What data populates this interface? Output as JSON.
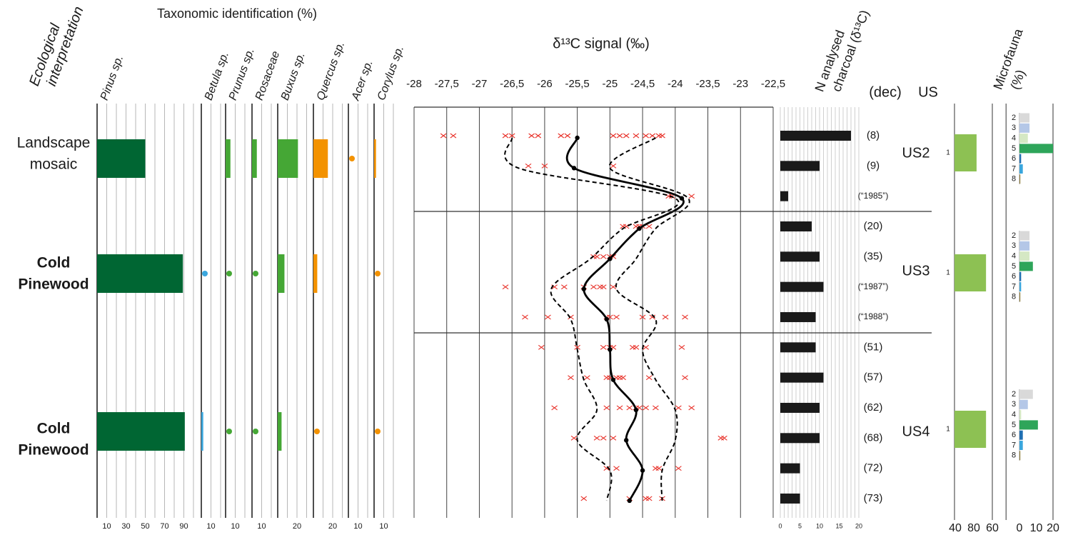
{
  "ecological_interpretation": {
    "title_lines": [
      "Ecological",
      "interpretation"
    ],
    "rows": [
      [
        "Landscape",
        "mosaic"
      ],
      [
        "Cold",
        "Pinewood"
      ],
      [
        "Cold",
        "Pinewood"
      ]
    ],
    "colors": [
      "#45a735",
      "#006633",
      "#006633"
    ]
  },
  "units": {
    "header": "US",
    "labels": [
      "US2",
      "US3",
      "US4"
    ]
  },
  "chart_data": [
    {
      "type": "bar",
      "title": "Taxonomic identification (%)",
      "grid_step": 10,
      "series": [
        {
          "name": "Pinus sp.",
          "color": "#006633",
          "values": [
            50,
            89,
            91
          ],
          "xlim": [
            0,
            100
          ],
          "xticks": [
            10,
            30,
            50,
            70,
            90
          ]
        },
        {
          "name": "Betula sp.",
          "color": "#3aa6dd",
          "values": [
            null,
            0.5,
            2
          ],
          "xlim": [
            0,
            20
          ],
          "xticks": [
            10
          ]
        },
        {
          "name": "Prunus sp.",
          "color": "#45a735",
          "values": [
            5,
            0.5,
            0.5
          ],
          "xlim": [
            0,
            20
          ],
          "xticks": [
            10
          ]
        },
        {
          "name": "Rosaceae",
          "color": "#45a735",
          "values": [
            5,
            0.5,
            0.5
          ],
          "xlim": [
            0,
            20
          ],
          "xticks": [
            10
          ]
        },
        {
          "name": "Buxus sp.",
          "color": "#45a735",
          "values": [
            21,
            7,
            4
          ],
          "xlim": [
            0,
            30
          ],
          "xticks": [
            20
          ]
        },
        {
          "name": "Quercus sp.",
          "color": "#f39200",
          "values": [
            15,
            4,
            0.5
          ],
          "xlim": [
            0,
            30
          ],
          "xticks": [
            20
          ]
        },
        {
          "name": "Acer sp.",
          "color": "#f39200",
          "values": [
            0.5,
            null,
            null
          ],
          "xlim": [
            0,
            20
          ],
          "xticks": [
            10
          ]
        },
        {
          "name": "Corylus sp.",
          "color": "#f39200",
          "values": [
            2,
            0.5,
            0.5
          ],
          "xlim": [
            0,
            20
          ],
          "xticks": [
            10
          ]
        }
      ]
    },
    {
      "type": "line",
      "title": "δ¹³C signal (‰)",
      "xlim": [
        -28,
        -22.5
      ],
      "xticks": [
        {
          "value": -28,
          "label": "-28"
        },
        {
          "value": -27.5,
          "label": "-27,5"
        },
        {
          "value": -27,
          "label": "-27"
        },
        {
          "value": -26.5,
          "label": "-26,5"
        },
        {
          "value": -26,
          "label": "-26"
        },
        {
          "value": -25.5,
          "label": "-25,5"
        },
        {
          "value": -25,
          "label": "-25"
        },
        {
          "value": -24.5,
          "label": "-24,5"
        },
        {
          "value": -24,
          "label": "-24"
        },
        {
          "value": -23.5,
          "label": "-23,5"
        },
        {
          "value": -23,
          "label": "-23"
        },
        {
          "value": -22.5,
          "label": "-22,5"
        }
      ],
      "series": [
        {
          "style": "solid",
          "color": "#000000",
          "values": [
            -25.5,
            -25.55,
            -23.9,
            -24.55,
            -25.0,
            -25.4,
            -25.05,
            -25.0,
            -24.95,
            -24.6,
            -24.75,
            -24.5,
            -24.7
          ]
        },
        {
          "style": "dashed",
          "color": "#000000",
          "values": [
            -26.5,
            -26.4,
            -24.0,
            -24.8,
            -25.3,
            -25.9,
            -25.6,
            -25.5,
            -25.4,
            -25.2,
            -25.5,
            -25.0,
            -25.05
          ]
        },
        {
          "style": "dashed",
          "color": "#000000",
          "values": [
            -24.3,
            -25.0,
            -23.8,
            -24.3,
            -24.6,
            -24.9,
            -24.3,
            -24.5,
            -24.3,
            -24.0,
            -24.0,
            -24.2,
            -24.2
          ]
        }
      ],
      "points_color": "#e8322a",
      "points": [
        [
          -27.55,
          -27.4,
          -26.6,
          -26.5,
          -26.2,
          -26.1,
          -25.75,
          -25.65,
          -24.95,
          -24.85,
          -24.75,
          -24.6,
          -24.45,
          -24.35,
          -24.25,
          -24.2
        ],
        [
          -26.25,
          -26.0,
          -24.95
        ],
        [
          -24.1,
          -24.05,
          -23.75
        ],
        [
          -24.8,
          -24.75,
          -24.6,
          -24.55,
          -24.5,
          -24.4
        ],
        [
          -25.25,
          -25.2,
          -25.1,
          -25.0,
          -24.95
        ],
        [
          -26.6,
          -25.85,
          -25.7,
          -25.4,
          -25.25,
          -25.15,
          -25.1,
          -24.95
        ],
        [
          -26.3,
          -25.95,
          -25.6,
          -25.05,
          -25.0,
          -24.9,
          -24.5,
          -24.35,
          -24.15,
          -23.85
        ],
        [
          -26.05,
          -25.5,
          -25.1,
          -25.0,
          -24.95,
          -24.65,
          -24.6,
          -24.45,
          -23.9
        ],
        [
          -25.6,
          -25.35,
          -25.05,
          -25.0,
          -24.9,
          -24.85,
          -24.8,
          -24.4,
          -23.85
        ],
        [
          -25.85,
          -25.05,
          -24.85,
          -24.7,
          -24.6,
          -24.55,
          -24.45,
          -24.3,
          -23.95,
          -23.75
        ],
        [
          -25.55,
          -25.2,
          -25.1,
          -24.95,
          -23.3,
          -23.25
        ],
        [
          -25.05,
          -24.9,
          -24.3,
          -24.25,
          -23.95
        ],
        [
          -25.4,
          -24.7,
          -24.45,
          -24.4,
          -24.2
        ]
      ]
    },
    {
      "type": "bar",
      "title_lines": [
        "N analysed",
        "charcoal (δ¹³C)"
      ],
      "category_header": "(dec)",
      "categories": [
        "(8)",
        "(9)",
        "(“1985”)",
        "(20)",
        "(35)",
        "(“1987”)",
        "(“1988”)",
        "(51)",
        "(57)",
        "(62)",
        "(68)",
        "(72)",
        "(73)"
      ],
      "values": [
        18,
        10,
        2,
        8,
        10,
        11,
        9,
        9,
        11,
        10,
        10,
        5,
        5
      ],
      "color": "#1a1a1a",
      "xlim": [
        0,
        20
      ],
      "xticks": [
        0,
        5,
        10,
        15,
        20
      ],
      "grid_step": 1
    },
    {
      "type": "bar",
      "values": [
        35,
        50,
        50
      ],
      "value_labels": [
        "1",
        "1",
        "1"
      ],
      "color": "#8dc153",
      "xlim": [
        0,
        60
      ],
      "tick_labels": [
        "40",
        "80",
        "60"
      ]
    },
    {
      "type": "bar",
      "title_lines": [
        "Microfauna",
        "(%)"
      ],
      "categories": [
        "2",
        "3",
        "4",
        "5",
        "6",
        "7",
        "8"
      ],
      "colors": [
        "#d9d9d9",
        "#b4c7e7",
        "#d5e8c4",
        "#2ea55a",
        "#1f6fb2",
        "#3aa6dd",
        "#8a7a3a"
      ],
      "groups": [
        [
          6,
          6,
          5,
          20,
          1,
          2,
          0.5
        ],
        [
          6,
          6,
          6,
          8,
          1,
          1,
          0.5
        ],
        [
          8,
          5,
          1,
          11,
          2,
          2,
          0.5
        ]
      ],
      "xlim": [
        -8,
        20
      ],
      "xticks": [
        0,
        10,
        20
      ]
    }
  ]
}
